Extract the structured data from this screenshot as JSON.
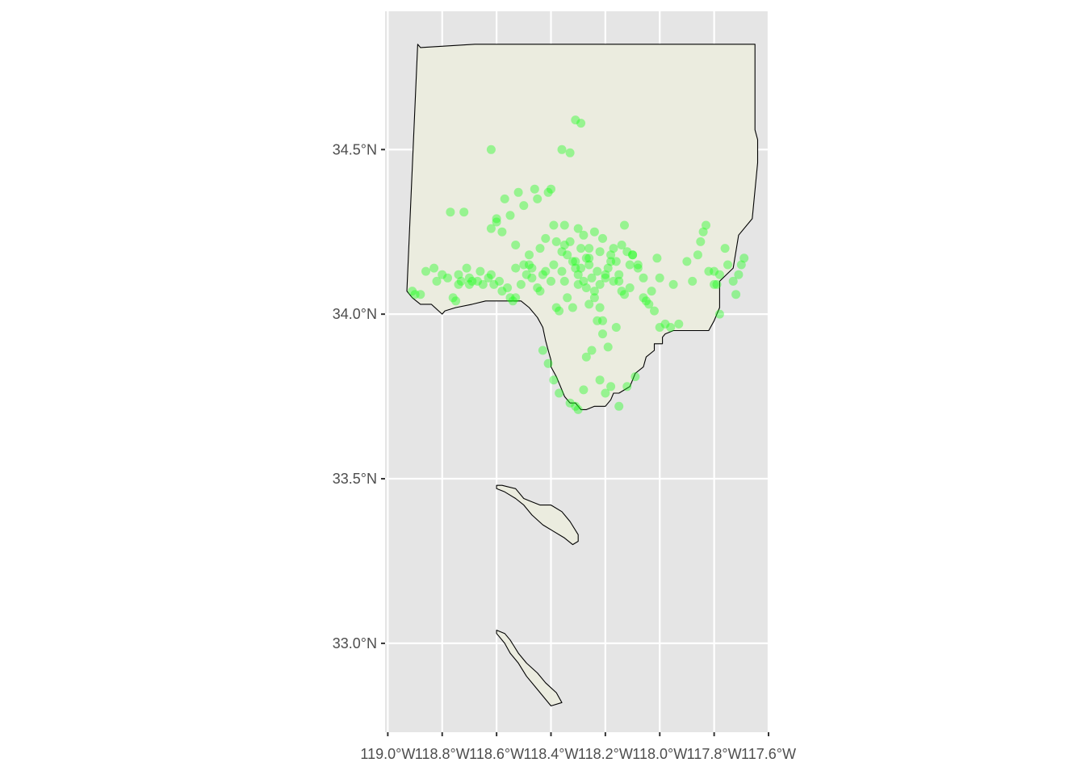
{
  "chart_data": {
    "type": "scatter",
    "title": "",
    "xlabel": "",
    "ylabel": "",
    "xlim": [
      -119.01,
      -117.6
    ],
    "ylim": [
      32.73,
      34.92
    ],
    "x_ticks": [
      {
        "value": -119.0,
        "label": "119.0°W"
      },
      {
        "value": -118.8,
        "label": "118.8°W"
      },
      {
        "value": -118.6,
        "label": "118.6°W"
      },
      {
        "value": -118.4,
        "label": "118.4°W"
      },
      {
        "value": -118.2,
        "label": "118.2°W"
      },
      {
        "value": -118.0,
        "label": "118.0°W"
      },
      {
        "value": -117.8,
        "label": "117.8°W"
      },
      {
        "value": -117.6,
        "label": "117.6°W"
      }
    ],
    "y_ticks": [
      {
        "value": 33.0,
        "label": "33.0°N"
      },
      {
        "value": 33.5,
        "label": "33.5°N"
      },
      {
        "value": 34.0,
        "label": "34.0°N"
      },
      {
        "value": 34.5,
        "label": "34.5°N"
      }
    ],
    "grid": true,
    "legend": "none",
    "colors": {
      "panel_background": "#e5e5e5",
      "grid": "#ffffff",
      "land_fill": "#ebecdf",
      "boundary": "#000000",
      "points": "#1aff1a"
    },
    "regions": [
      {
        "name": "mainland",
        "lon": [
          -118.89,
          -118.88,
          -118.68,
          -117.65,
          -117.65,
          -117.64,
          -117.64,
          -117.66,
          -117.71,
          -117.73,
          -117.78,
          -117.78,
          -117.79,
          -117.8,
          -117.82,
          -117.86,
          -117.95,
          -117.98,
          -117.99,
          -117.99,
          -118.02,
          -118.02,
          -118.05,
          -118.06,
          -118.09,
          -118.1,
          -118.11,
          -118.13,
          -118.15,
          -118.17,
          -118.18,
          -118.2,
          -118.24,
          -118.27,
          -118.29,
          -118.31,
          -118.33,
          -118.35,
          -118.36,
          -118.37,
          -118.38,
          -118.4,
          -118.4,
          -118.41,
          -118.42,
          -118.43,
          -118.45,
          -118.48,
          -118.51,
          -118.54,
          -118.59,
          -118.64,
          -118.69,
          -118.75,
          -118.79,
          -118.8,
          -118.84,
          -118.88,
          -118.91,
          -118.93
        ],
        "lat": [
          34.82,
          34.81,
          34.82,
          34.82,
          34.56,
          34.53,
          34.46,
          34.29,
          34.24,
          34.14,
          34.1,
          34.02,
          34.0,
          33.98,
          33.95,
          33.95,
          33.95,
          33.94,
          33.93,
          33.91,
          33.91,
          33.89,
          33.87,
          33.84,
          33.82,
          33.8,
          33.78,
          33.77,
          33.76,
          33.76,
          33.74,
          33.72,
          33.72,
          33.71,
          33.71,
          33.73,
          33.73,
          33.75,
          33.77,
          33.79,
          33.81,
          33.84,
          33.86,
          33.89,
          33.92,
          33.96,
          33.99,
          34.02,
          34.04,
          34.04,
          34.04,
          34.04,
          34.03,
          34.02,
          34.01,
          34.0,
          34.03,
          34.03,
          34.05,
          34.07
        ]
      },
      {
        "name": "santa-catalina-island",
        "lon": [
          -118.6,
          -118.58,
          -118.53,
          -118.5,
          -118.47,
          -118.44,
          -118.4,
          -118.36,
          -118.33,
          -118.3,
          -118.3,
          -118.32,
          -118.35,
          -118.39,
          -118.43,
          -118.47,
          -118.5,
          -118.53,
          -118.57,
          -118.6
        ],
        "lat": [
          33.48,
          33.48,
          33.47,
          33.44,
          33.43,
          33.42,
          33.42,
          33.4,
          33.37,
          33.33,
          33.31,
          33.3,
          33.32,
          33.34,
          33.36,
          33.39,
          33.42,
          33.44,
          33.46,
          33.47
        ]
      },
      {
        "name": "san-clemente-island",
        "lon": [
          -118.6,
          -118.57,
          -118.55,
          -118.52,
          -118.49,
          -118.45,
          -118.42,
          -118.38,
          -118.36,
          -118.4,
          -118.43,
          -118.46,
          -118.49,
          -118.52,
          -118.55,
          -118.57,
          -118.59,
          -118.6
        ],
        "lat": [
          33.04,
          33.03,
          33.01,
          32.97,
          32.94,
          32.91,
          32.88,
          32.85,
          32.82,
          32.81,
          32.84,
          32.87,
          32.9,
          32.94,
          32.97,
          33.0,
          33.02,
          33.03
        ]
      }
    ],
    "points": {
      "lon": [
        -118.91,
        -118.9,
        -118.88,
        -118.83,
        -118.82,
        -118.77,
        -118.76,
        -118.75,
        -118.74,
        -118.73,
        -118.72,
        -118.71,
        -118.7,
        -118.69,
        -118.67,
        -118.65,
        -118.63,
        -118.62,
        -118.61,
        -118.6,
        -118.59,
        -118.58,
        -118.57,
        -118.56,
        -118.55,
        -118.54,
        -118.53,
        -118.52,
        -118.51,
        -118.5,
        -118.49,
        -118.48,
        -118.47,
        -118.46,
        -118.45,
        -118.44,
        -118.43,
        -118.42,
        -118.41,
        -118.4,
        -118.39,
        -118.38,
        -118.37,
        -118.36,
        -118.35,
        -118.34,
        -118.33,
        -118.32,
        -118.31,
        -118.3,
        -118.29,
        -118.28,
        -118.27,
        -118.26,
        -118.25,
        -118.24,
        -118.23,
        -118.22,
        -118.21,
        -118.2,
        -118.19,
        -118.18,
        -118.17,
        -118.16,
        -118.15,
        -118.14,
        -118.13,
        -118.12,
        -118.11,
        -118.1,
        -118.08,
        -118.06,
        -118.04,
        -118.03,
        -118.02,
        -118.01,
        -118.0,
        -117.98,
        -117.96,
        -117.93,
        -117.9,
        -117.88,
        -117.86,
        -117.84,
        -117.83,
        -117.8,
        -117.79,
        -117.78,
        -117.76,
        -117.75,
        -117.73,
        -117.71,
        -117.69,
        -118.43,
        -118.41,
        -118.39,
        -118.37,
        -118.33,
        -118.31,
        -118.3,
        -118.28,
        -118.27,
        -118.25,
        -118.22,
        -118.2,
        -118.18,
        -118.15,
        -118.12,
        -118.09,
        -118.29,
        -118.31,
        -118.33,
        -118.36,
        -118.4,
        -118.45,
        -118.5,
        -118.55,
        -118.6,
        -118.62,
        -118.58,
        -118.53,
        -118.48,
        -118.26,
        -118.23,
        -118.21,
        -118.19,
        -118.16,
        -118.14,
        -118.24,
        -118.32,
        -118.27,
        -118.18,
        -118.1,
        -118.05,
        -118.35,
        -118.38,
        -118.34,
        -118.3,
        -118.28,
        -118.26,
        -118.22,
        -118.35,
        -118.31,
        -118.29,
        -118.2,
        -118.15,
        -118.11,
        -118.06,
        -118.0,
        -117.95,
        -117.85,
        -117.82,
        -117.8,
        -117.78,
        -117.72,
        -117.7,
        -118.62,
        -118.66,
        -118.7,
        -118.74,
        -118.78,
        -118.8,
        -118.86,
        -118.53,
        -118.47,
        -118.44,
        -118.42,
        -118.39,
        -118.36,
        -118.3,
        -118.26,
        -118.24,
        -118.22,
        -118.21,
        -118.17,
        -118.13,
        -118.08
      ],
      "lat": [
        34.07,
        34.06,
        34.06,
        34.14,
        34.1,
        34.31,
        34.05,
        34.04,
        34.12,
        34.1,
        34.31,
        34.14,
        34.11,
        34.1,
        34.1,
        34.09,
        34.11,
        34.26,
        34.09,
        34.28,
        34.1,
        34.07,
        34.35,
        34.08,
        34.05,
        34.04,
        34.14,
        34.37,
        34.09,
        34.15,
        34.12,
        34.18,
        34.14,
        34.38,
        34.08,
        34.07,
        34.12,
        34.13,
        34.37,
        34.1,
        34.27,
        34.02,
        34.01,
        34.19,
        34.21,
        34.18,
        34.22,
        34.16,
        34.14,
        34.12,
        34.2,
        34.1,
        34.17,
        34.15,
        34.11,
        34.25,
        34.13,
        34.09,
        34.23,
        34.11,
        34.14,
        34.18,
        34.2,
        34.16,
        34.12,
        34.21,
        34.27,
        34.19,
        34.15,
        34.18,
        34.15,
        34.11,
        34.03,
        34.07,
        34.01,
        34.17,
        34.11,
        33.97,
        33.96,
        33.97,
        34.16,
        34.1,
        34.18,
        34.25,
        34.27,
        34.13,
        34.09,
        34.0,
        34.2,
        34.15,
        34.1,
        34.12,
        34.17,
        33.89,
        33.85,
        33.8,
        33.76,
        33.73,
        33.72,
        33.71,
        33.77,
        33.87,
        33.89,
        33.8,
        33.76,
        33.78,
        33.72,
        33.78,
        33.81,
        34.58,
        34.59,
        34.49,
        34.5,
        34.38,
        34.35,
        34.33,
        34.3,
        34.29,
        34.5,
        34.25,
        34.21,
        34.15,
        34.03,
        33.98,
        33.94,
        33.9,
        33.96,
        34.07,
        34.05,
        34.02,
        34.08,
        34.16,
        34.18,
        34.04,
        34.27,
        34.22,
        34.05,
        34.26,
        34.24,
        34.2,
        34.19,
        34.1,
        34.16,
        34.14,
        34.12,
        34.1,
        34.08,
        34.05,
        33.96,
        34.09,
        34.22,
        34.13,
        34.09,
        34.12,
        34.06,
        34.15,
        34.12,
        34.13,
        34.09,
        34.09,
        34.11,
        34.12,
        34.13,
        34.05,
        34.11,
        34.2,
        34.23,
        34.15,
        34.13,
        34.09,
        34.17,
        34.07,
        34.02,
        33.98,
        34.1,
        34.06,
        34.14,
        33.94,
        34.17
      ]
    }
  }
}
